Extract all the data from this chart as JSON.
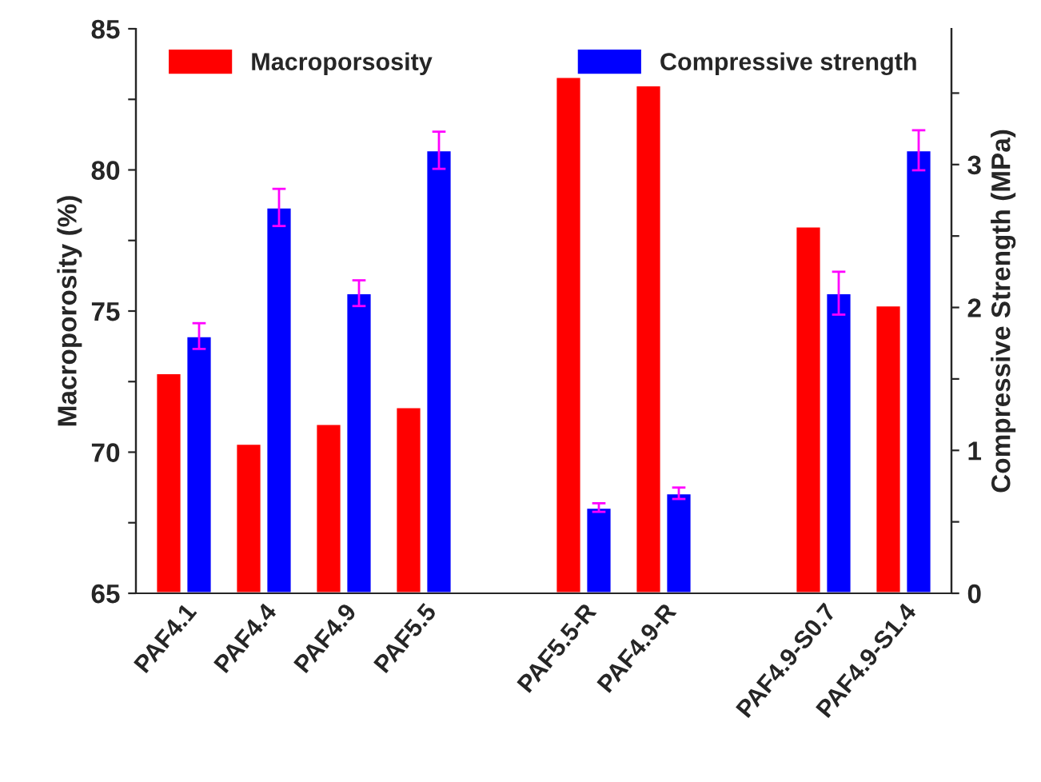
{
  "chart_data": {
    "type": "bar",
    "xlabel": null,
    "ylabel": "Macroporosity (%)",
    "y2label": "Compressive Strength (MPa)",
    "categories": [
      "PAF4.1",
      "PAF4.4",
      "PAF4.9",
      "PAF5.5",
      null,
      "PAF5.5-R",
      "PAF4.9-R",
      null,
      "PAF4.9-S0.7",
      "PAF4.9-S1.4"
    ],
    "series": [
      {
        "name": "Macroporsosity",
        "color": "#ff0000",
        "values": [
          72.8,
          70.3,
          71.0,
          71.6,
          null,
          83.3,
          83.0,
          null,
          78.0,
          75.2
        ]
      },
      {
        "name": "Compressive strength",
        "color": "#0000ff",
        "axis": "y2",
        "values": [
          1.8,
          2.7,
          2.1,
          3.1,
          null,
          0.6,
          0.7,
          null,
          2.1,
          3.1
        ],
        "errors": [
          0.09,
          0.13,
          0.09,
          0.13,
          null,
          0.03,
          0.04,
          null,
          0.15,
          0.14
        ]
      }
    ],
    "ylim": [
      65,
      85
    ],
    "yticks": [
      65,
      {
        "value": 67.5,
        "label": null
      },
      70,
      {
        "value": 72.5,
        "label": null
      },
      75,
      {
        "value": 77.5,
        "label": null
      },
      80,
      {
        "value": 82.5,
        "label": null
      },
      85
    ],
    "y2lim": [
      0,
      3.95
    ],
    "y2ticks": [
      0,
      {
        "value": 0.5,
        "label": null
      },
      1,
      {
        "value": 1.5,
        "label": null
      },
      2,
      {
        "value": 2.5,
        "label": null
      },
      3,
      {
        "value": 3.5,
        "label": null
      }
    ],
    "grid": false,
    "legend": "top"
  }
}
